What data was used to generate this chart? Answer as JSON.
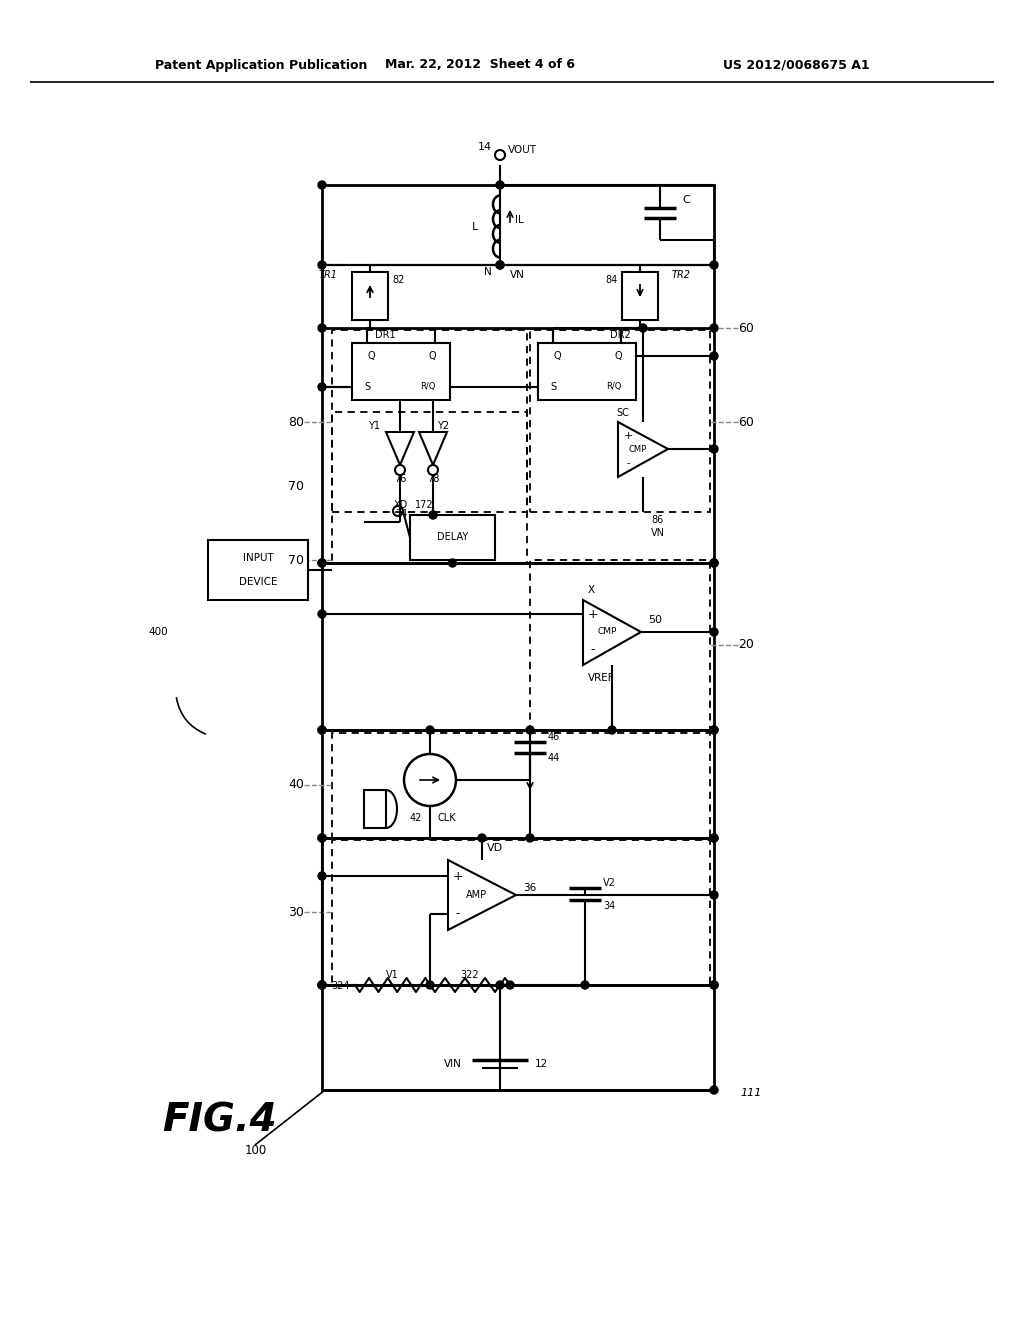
{
  "header_left": "Patent Application Publication",
  "header_mid": "Mar. 22, 2012  Sheet 4 of 6",
  "header_right": "US 2012/0068675 A1",
  "bg_color": "#ffffff"
}
